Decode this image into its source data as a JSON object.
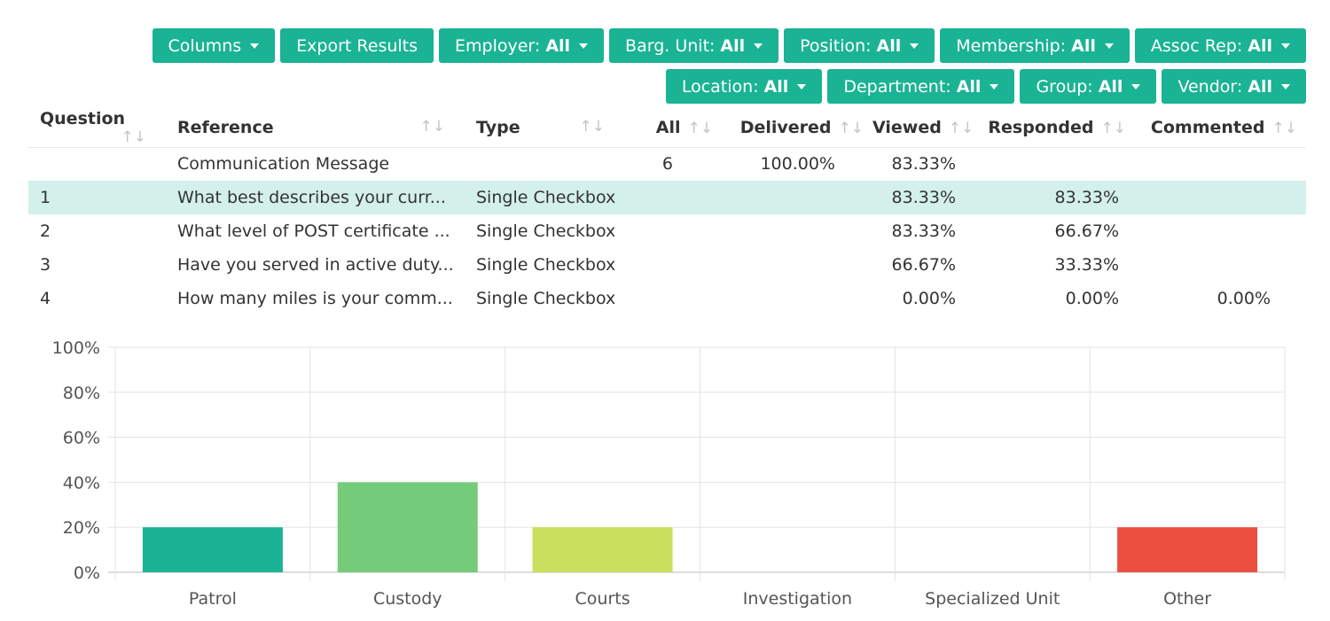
{
  "filters": {
    "row1": [
      {
        "label": "Columns",
        "value": ""
      },
      {
        "label": "Export Results",
        "value": ""
      },
      {
        "label": "Employer:",
        "value": "All"
      },
      {
        "label": "Barg. Unit:",
        "value": "All"
      },
      {
        "label": "Position:",
        "value": "All"
      },
      {
        "label": "Membership:",
        "value": "All"
      },
      {
        "label": "Assoc Rep:",
        "value": "All"
      }
    ],
    "row2": [
      {
        "label": "Location:",
        "value": "All"
      },
      {
        "label": "Department:",
        "value": "All"
      },
      {
        "label": "Group:",
        "value": "All"
      },
      {
        "label": "Vendor:",
        "value": "All"
      }
    ]
  },
  "table": {
    "headers": [
      "Question",
      "Reference",
      "Type",
      "All",
      "Delivered",
      "Viewed",
      "Responded",
      "Commented"
    ],
    "rows": [
      [
        "",
        "Communication Message",
        "",
        "6",
        "100.00%",
        "83.33%",
        "",
        ""
      ],
      [
        "1",
        "What best describes your curr...",
        "Single Checkbox",
        "",
        "",
        "83.33%",
        "83.33%",
        ""
      ],
      [
        "2",
        "What level of POST certificate ...",
        "Single Checkbox",
        "",
        "",
        "83.33%",
        "66.67%",
        ""
      ],
      [
        "3",
        "Have you served in active duty...",
        "Single Checkbox",
        "",
        "",
        "66.67%",
        "33.33%",
        ""
      ],
      [
        "4",
        "How many miles is your comm...",
        "Single Checkbox",
        "",
        "",
        "0.00%",
        "0.00%",
        "0.00%"
      ]
    ],
    "selected_row": 1
  },
  "chart_data": {
    "type": "bar",
    "categories": [
      "Patrol",
      "Custody",
      "Courts",
      "Investigation",
      "Specialized Unit",
      "Other"
    ],
    "values": [
      20,
      40,
      20,
      0,
      0,
      20
    ],
    "colors": [
      "#1ab394",
      "#74cc7a",
      "#cadf5d",
      "#1ab394",
      "#1ab394",
      "#ec4f40"
    ],
    "ylim": [
      0,
      100
    ],
    "yticks": [
      "0%",
      "20%",
      "40%",
      "60%",
      "80%",
      "100%"
    ],
    "grid": true
  }
}
